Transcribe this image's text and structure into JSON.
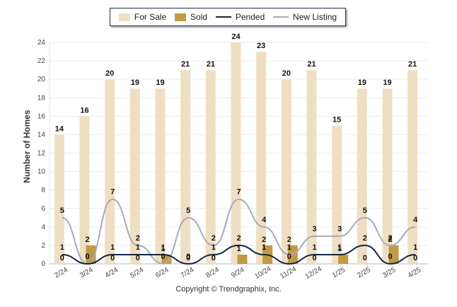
{
  "chart_data": {
    "type": "bar",
    "title": "",
    "xlabel": "",
    "ylabel": "Number of Homes",
    "ylim": [
      0,
      24
    ],
    "yticks": [
      0,
      2,
      4,
      6,
      8,
      10,
      12,
      14,
      16,
      18,
      20,
      22,
      24
    ],
    "grid": true,
    "legend_position": "top-center",
    "categories": [
      "2/24",
      "3/24",
      "4/24",
      "5/24",
      "6/24",
      "7/24",
      "8/24",
      "9/24",
      "10/24",
      "11/24",
      "12/24",
      "1/25",
      "2/25",
      "3/25",
      "4/25"
    ],
    "series": [
      {
        "name": "For Sale",
        "kind": "bar",
        "color": "#efdfc2",
        "values": [
          14,
          16,
          20,
          19,
          19,
          21,
          21,
          24,
          23,
          20,
          21,
          15,
          19,
          19,
          21
        ]
      },
      {
        "name": "Sold",
        "kind": "bar",
        "color": "#c09a45",
        "values": [
          0,
          2,
          0,
          0,
          1,
          0,
          0,
          1,
          2,
          2,
          0,
          1,
          0,
          2,
          0
        ]
      },
      {
        "name": "Pended",
        "kind": "line",
        "color": "#132640",
        "values": [
          1,
          0,
          1,
          1,
          1,
          0,
          1,
          2,
          1,
          0,
          1,
          1,
          2,
          0,
          1
        ]
      },
      {
        "name": "New Listing",
        "kind": "line",
        "color": "#a5abbb",
        "values": [
          5,
          0,
          7,
          2,
          0,
          5,
          2,
          7,
          4,
          1,
          3,
          3,
          5,
          2,
          4
        ]
      }
    ]
  },
  "footer": "Copyright © Trendgraphix, Inc."
}
